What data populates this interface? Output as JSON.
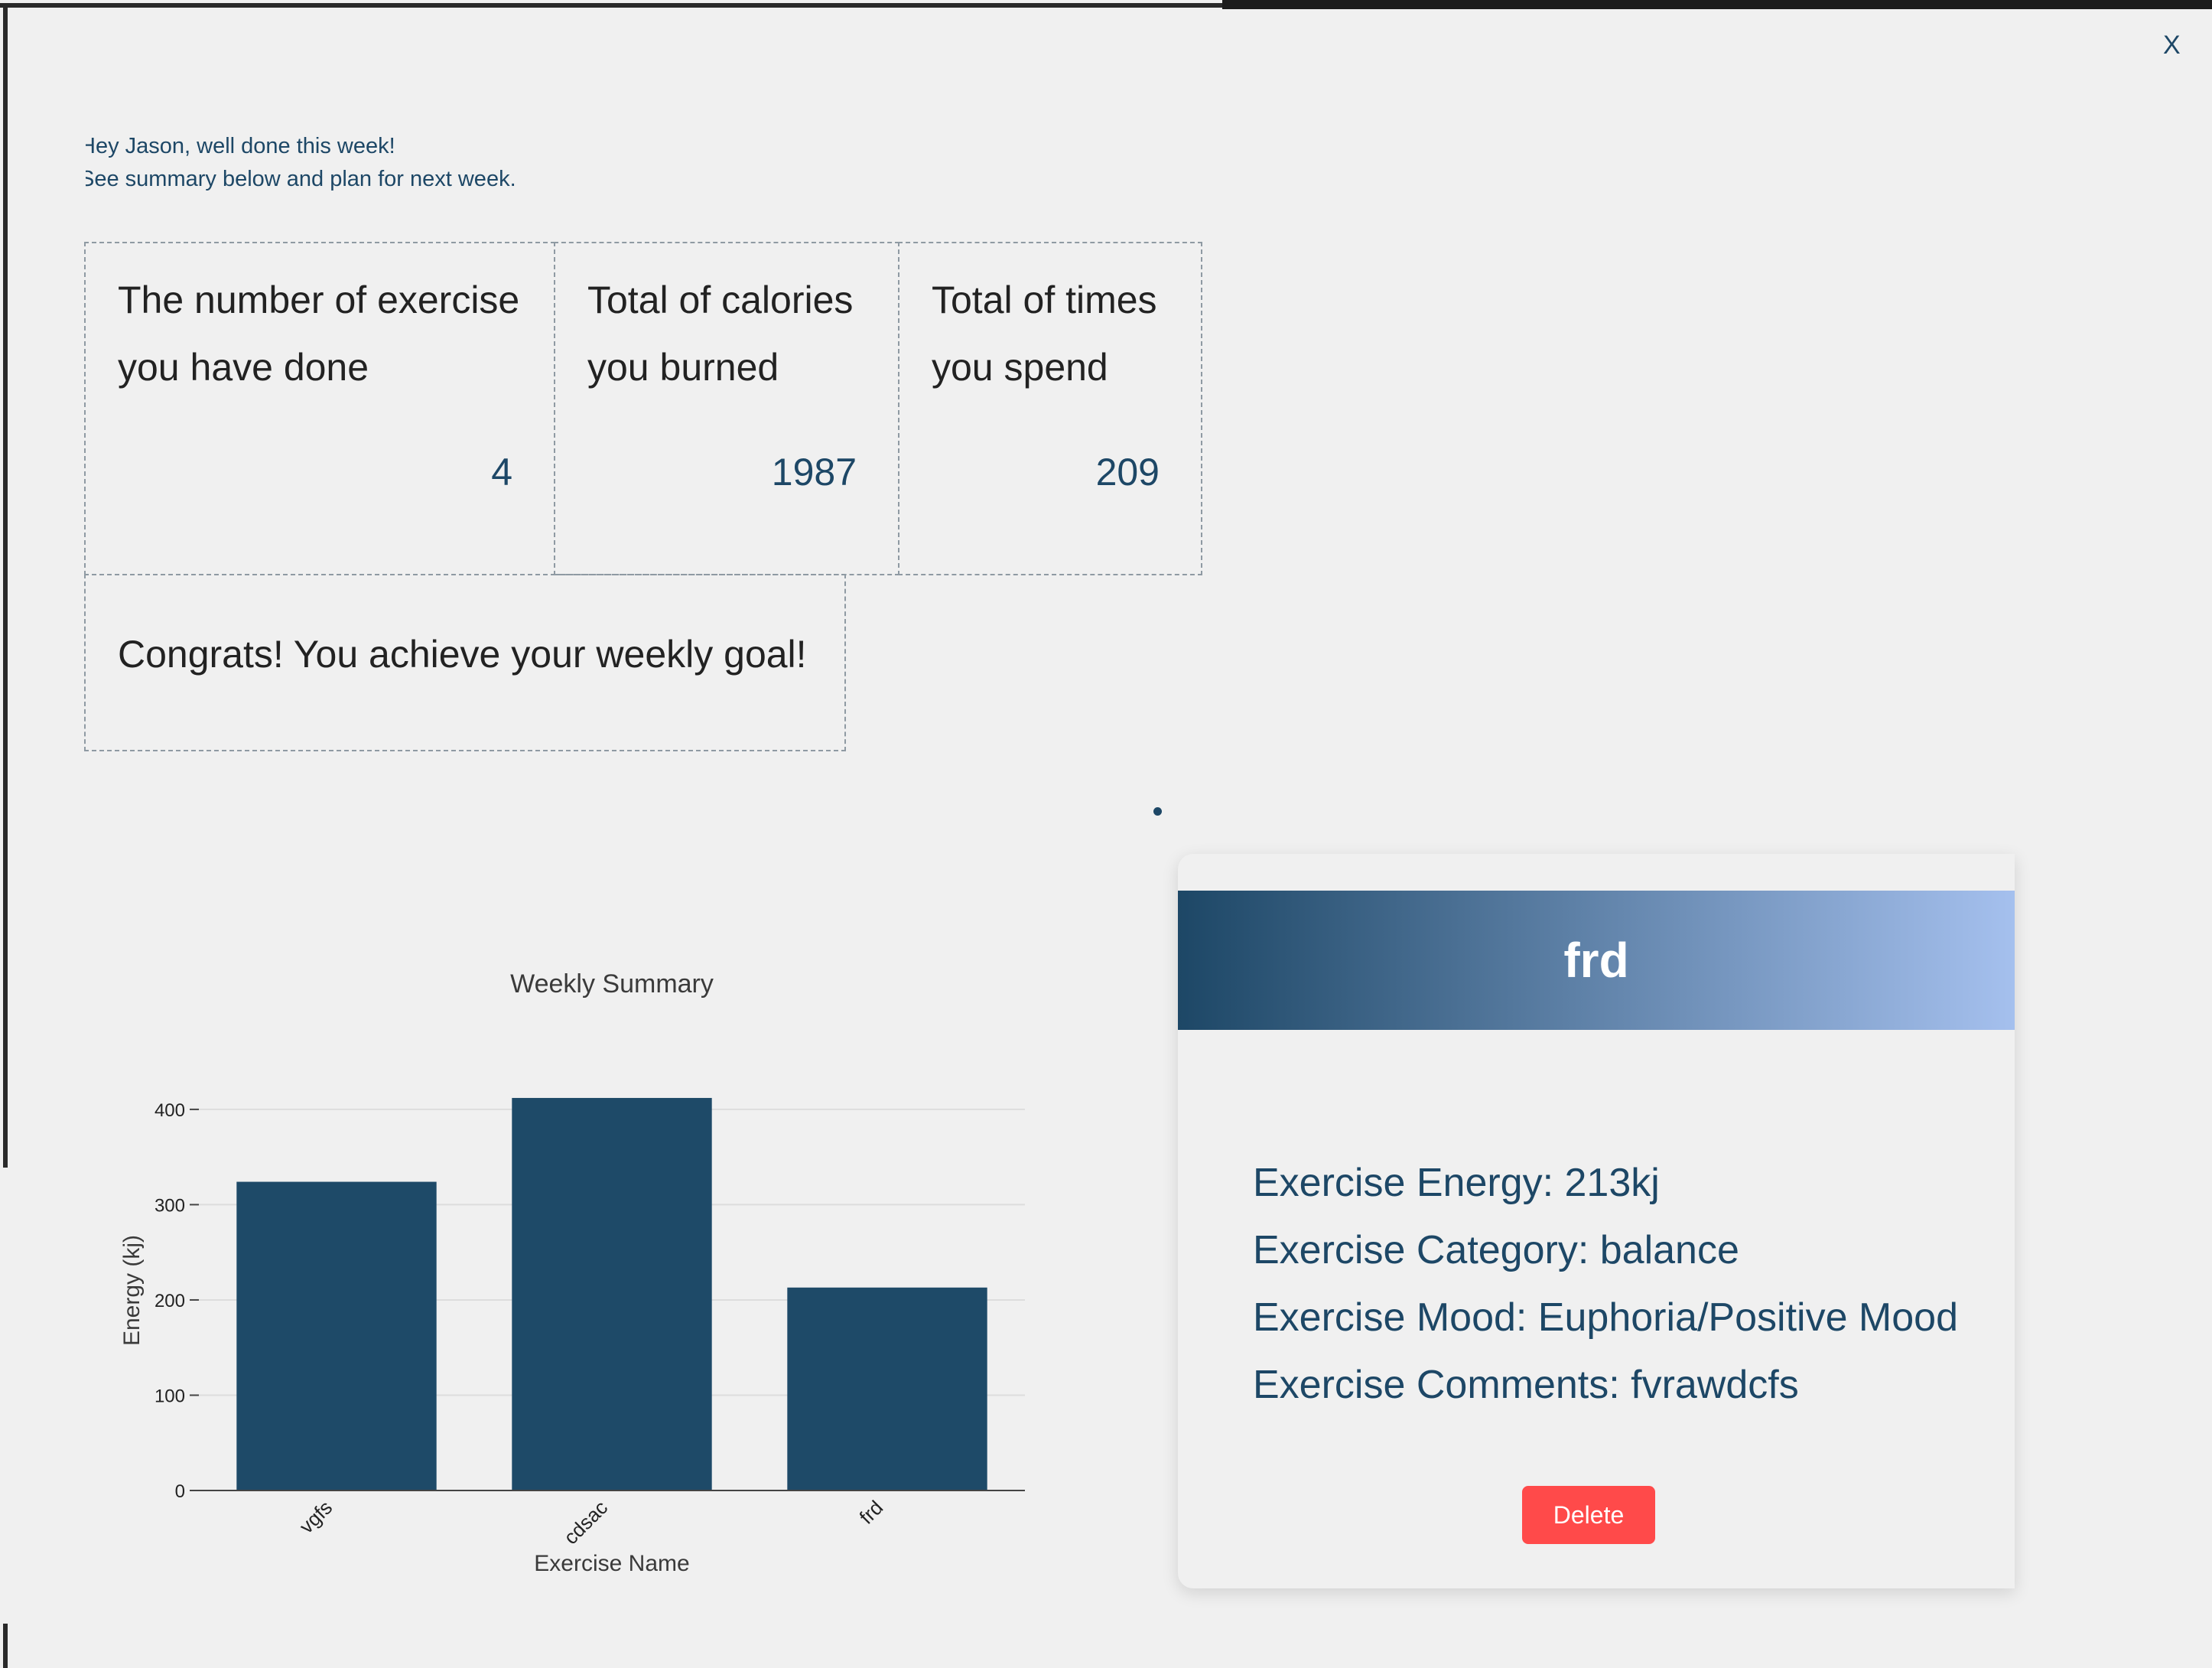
{
  "header": {
    "close_label": "X",
    "greeting_line1": "Hey Jason, well done this week!",
    "greeting_line2": "See summary below and plan for next week."
  },
  "stats": {
    "exercise_count": {
      "label_line1": "The number of exercise",
      "label_line2": "you have done",
      "value": "4"
    },
    "calories": {
      "label_line1": "Total of calories",
      "label_line2": "you burned",
      "value": "1987"
    },
    "times": {
      "label_line1": "Total of times",
      "label_line2": "you spend",
      "value": "209"
    },
    "goal_message": "Congrats! You achieve your weekly goal!"
  },
  "detail": {
    "title": "frd",
    "energy": "Exercise Energy: 213kj",
    "category": "Exercise Category: balance",
    "mood": "Exercise Mood: Euphoria/Positive Mood",
    "comments": "Exercise Comments: fvrawdcfs",
    "delete_label": "Delete"
  },
  "colors": {
    "accent": "#1d4766",
    "bar": "#1e4a68",
    "gradient_end": "#a5c0ee",
    "delete": "#ff4a4a"
  },
  "chart_data": {
    "type": "bar",
    "title": "Weekly Summary",
    "categories": [
      "vgfs",
      "cdsac",
      "frd"
    ],
    "values": [
      324,
      412,
      213
    ],
    "xlabel": "Exercise Name",
    "ylabel": "Energy (kj)",
    "ylim": [
      0,
      420
    ],
    "yticks": [
      0,
      100,
      200,
      300,
      400
    ],
    "grid": true
  }
}
